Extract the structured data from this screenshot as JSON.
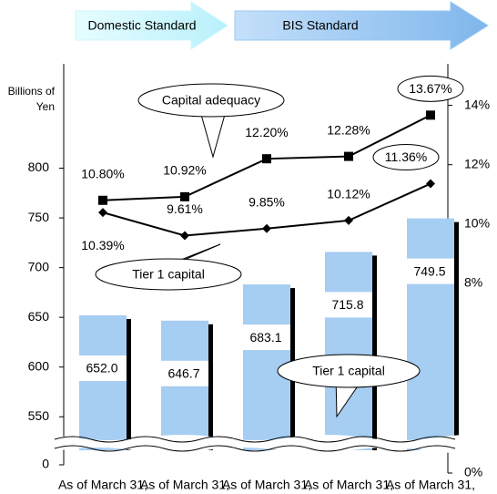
{
  "chart_data": {
    "type": "bar_line",
    "ylabel": "Billions of Yen",
    "regimes": [
      {
        "label": "Domestic Standard",
        "color": "#ccf7ff"
      },
      {
        "label": "BIS Standard",
        "color": "#99c8f2"
      }
    ],
    "categories": [
      "As of March 31,",
      "As of March 31,",
      "As of March 31,",
      "As of March 31,",
      "As of March 31,"
    ],
    "series": [
      {
        "name": "Tier 1 capital",
        "type": "bar",
        "color": "#a6cdf2",
        "values": [
          652.0,
          646.7,
          683.1,
          715.8,
          749.5
        ],
        "value_labels": [
          "652.0",
          "646.7",
          "683.1",
          "715.8",
          "749.5"
        ]
      },
      {
        "name": "Capital adequacy",
        "type": "line",
        "axis": "y2",
        "marker": "square",
        "color": "#000000",
        "values": [
          10.8,
          10.92,
          12.2,
          12.28,
          13.67
        ],
        "value_labels": [
          "10.80%",
          "10.92%",
          "12.20%",
          "12.28%",
          "13.67%"
        ]
      },
      {
        "name": "Tier 1 capital",
        "type": "line",
        "axis": "y2",
        "marker": "diamond",
        "color": "#000000",
        "values": [
          10.39,
          9.61,
          9.85,
          10.12,
          11.36
        ],
        "value_labels": [
          "10.39%",
          "9.61%",
          "9.85%",
          "10.12%",
          "11.36%"
        ]
      }
    ],
    "axis_break": true,
    "ylim": [
      520,
      905
    ],
    "yticks": [
      0,
      550,
      600,
      650,
      700,
      750,
      800
    ],
    "y2lim": [
      2.5,
      15.4
    ],
    "y2ticks": [
      {
        "value": 0,
        "label": "0%"
      },
      {
        "value": 8,
        "label": "8%"
      },
      {
        "value": 10,
        "label": "10%"
      },
      {
        "value": 12,
        "label": "12%"
      },
      {
        "value": 14,
        "label": "14%"
      }
    ],
    "y2minor_ticks": [
      4,
      6
    ]
  }
}
